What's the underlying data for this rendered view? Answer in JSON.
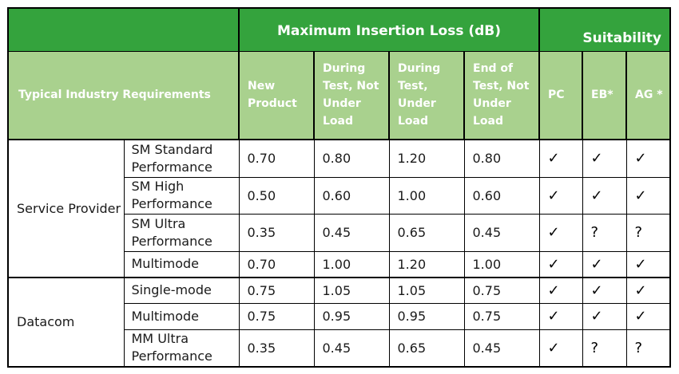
{
  "header": {
    "max_loss_title": "Maximum Insertion Loss (dB)",
    "suitability_title": "Suitability",
    "requirements": "Typical Industry Requirements",
    "columns": [
      "New Product",
      "During Test, Not Under Load",
      "During Test, Under Load",
      "End of Test, Not Under Load"
    ],
    "suit_columns": [
      "PC",
      "EB*",
      "AG *"
    ]
  },
  "groups": [
    {
      "name": "Service Provider",
      "rows": [
        {
          "label": "SM Standard Performance",
          "values": [
            "0.70",
            "0.80",
            "1.20",
            "0.80"
          ],
          "suit": [
            "✓",
            "✓",
            "✓"
          ]
        },
        {
          "label": "SM High Performance",
          "values": [
            "0.50",
            "0.60",
            "1.00",
            "0.60"
          ],
          "suit": [
            "✓",
            "✓",
            "✓"
          ]
        },
        {
          "label": "SM Ultra Performance",
          "values": [
            "0.35",
            "0.45",
            "0.65",
            "0.45"
          ],
          "suit": [
            "✓",
            "?",
            "?"
          ]
        },
        {
          "label": "Multimode",
          "values": [
            "0.70",
            "1.00",
            "1.20",
            "1.00"
          ],
          "suit": [
            "✓",
            "✓",
            "✓"
          ]
        }
      ]
    },
    {
      "name": "Datacom",
      "rows": [
        {
          "label": "Single-mode",
          "values": [
            "0.75",
            "1.05",
            "1.05",
            "0.75"
          ],
          "suit": [
            "✓",
            "✓",
            "✓"
          ]
        },
        {
          "label": "Multimode",
          "values": [
            "0.75",
            "0.95",
            "0.95",
            "0.75"
          ],
          "suit": [
            "✓",
            "✓",
            "✓"
          ]
        },
        {
          "label": "MM Ultra Performance",
          "values": [
            "0.35",
            "0.45",
            "0.65",
            "0.45"
          ],
          "suit": [
            "✓",
            "?",
            "?"
          ]
        }
      ]
    }
  ]
}
